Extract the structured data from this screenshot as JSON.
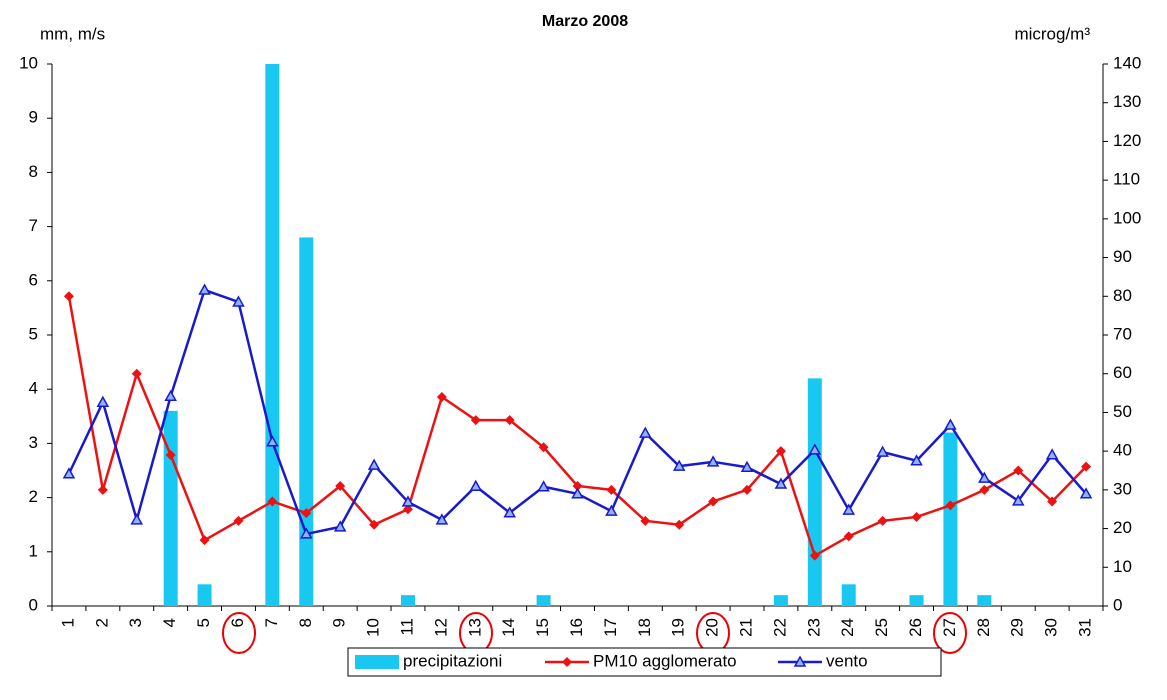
{
  "chart_data": {
    "type": "combo",
    "title": "Marzo 2008",
    "y_label": "mm, m/s",
    "y2_label": "microg/m³",
    "categories": [
      "1",
      "2",
      "3",
      "4",
      "5",
      "6",
      "7",
      "8",
      "9",
      "10",
      "11",
      "12",
      "13",
      "14",
      "15",
      "16",
      "17",
      "18",
      "19",
      "20",
      "21",
      "22",
      "23",
      "24",
      "25",
      "26",
      "27",
      "28",
      "29",
      "30",
      "31"
    ],
    "ylim": [
      0,
      10
    ],
    "yticks": [
      0,
      1,
      2,
      3,
      4,
      5,
      6,
      7,
      8,
      9,
      10
    ],
    "y2lim": [
      0,
      140
    ],
    "y2ticks": [
      0,
      10,
      20,
      30,
      40,
      50,
      60,
      70,
      80,
      90,
      100,
      110,
      120,
      130,
      140
    ],
    "legend": "bottom",
    "series": [
      {
        "name": "precipitazioni",
        "type": "bar",
        "color": "#19c8f0",
        "values": [
          0,
          0,
          0,
          3.6,
          0.4,
          0,
          10,
          6.8,
          0,
          0,
          0.2,
          0,
          0,
          0,
          0.2,
          0,
          0,
          0,
          0,
          0,
          0,
          0.2,
          4.2,
          0.4,
          0,
          0.2,
          3.2,
          0.2,
          0,
          0,
          0
        ]
      },
      {
        "name": "PM10 agglomerato",
        "type": "line",
        "marker": "diamond",
        "axis": "y2",
        "color": "#ee1111",
        "values": [
          80,
          30,
          60,
          39,
          17,
          22,
          27,
          24,
          31,
          21,
          25,
          54,
          48,
          48,
          41,
          31,
          30,
          22,
          21,
          27,
          30,
          40,
          13,
          18,
          22,
          23,
          26,
          30,
          35,
          27,
          36
        ]
      },
      {
        "name": "vento",
        "type": "line",
        "marker": "triangle",
        "color": "#1a1acc",
        "values": [
          2.44,
          3.76,
          1.59,
          3.87,
          5.83,
          5.61,
          3.03,
          1.33,
          1.46,
          2.6,
          1.92,
          1.59,
          2.21,
          1.72,
          2.2,
          2.07,
          1.75,
          3.19,
          2.58,
          2.66,
          2.56,
          2.25,
          2.88,
          1.77,
          2.84,
          2.68,
          3.34,
          2.36,
          1.94,
          2.79,
          2.07
        ]
      }
    ]
  }
}
